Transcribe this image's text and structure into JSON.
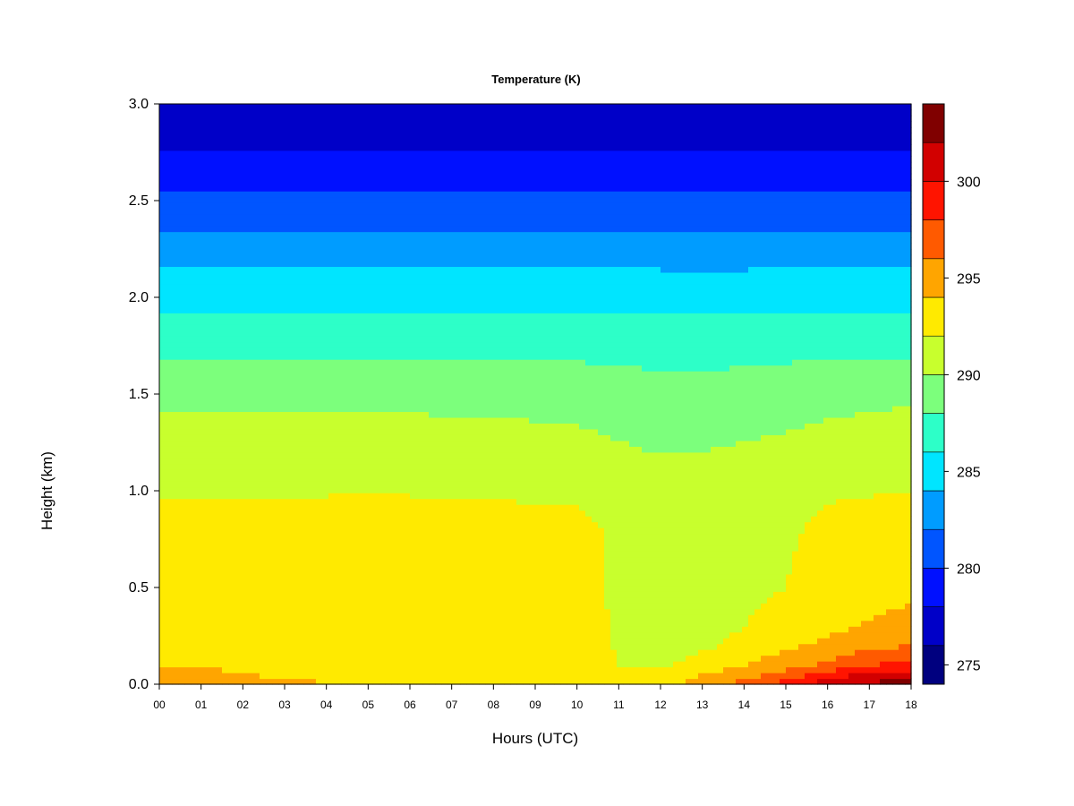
{
  "chart_data": {
    "type": "heatmap",
    "title": "Temperature (K)",
    "xlabel": "Hours (UTC)",
    "ylabel": "Height (km)",
    "x_range": [
      0,
      18
    ],
    "y_range": [
      0.0,
      3.0
    ],
    "x_ticks": [
      "00",
      "01",
      "02",
      "03",
      "04",
      "05",
      "06",
      "07",
      "08",
      "09",
      "10",
      "11",
      "12",
      "13",
      "14",
      "15",
      "16",
      "17",
      "18"
    ],
    "y_ticks": [
      "0.0",
      "0.5",
      "1.0",
      "1.5",
      "2.0",
      "2.5",
      "3.0"
    ],
    "colorbar": {
      "range": [
        274,
        304
      ],
      "step": 2,
      "tick_values": [
        275,
        280,
        285,
        290,
        295,
        300
      ],
      "tick_labels": [
        "275",
        "280",
        "285",
        "290",
        "295",
        "300"
      ],
      "levels": [
        {
          "from": 274,
          "to": 276,
          "color": "#00007F"
        },
        {
          "from": 276,
          "to": 278,
          "color": "#0000C8"
        },
        {
          "from": 278,
          "to": 280,
          "color": "#0010FF"
        },
        {
          "from": 280,
          "to": 282,
          "color": "#0055FF"
        },
        {
          "from": 282,
          "to": 284,
          "color": "#009CFF"
        },
        {
          "from": 284,
          "to": 286,
          "color": "#00E5FF"
        },
        {
          "from": 286,
          "to": 288,
          "color": "#2DFFC8"
        },
        {
          "from": 288,
          "to": 290,
          "color": "#7CFF7C"
        },
        {
          "from": 290,
          "to": 292,
          "color": "#C8FF2D"
        },
        {
          "from": 292,
          "to": 294,
          "color": "#FFEA00"
        },
        {
          "from": 294,
          "to": 296,
          "color": "#FFA500"
        },
        {
          "from": 296,
          "to": 298,
          "color": "#FF5A00"
        },
        {
          "from": 298,
          "to": 300,
          "color": "#FF1400"
        },
        {
          "from": 300,
          "to": 302,
          "color": "#D20000"
        },
        {
          "from": 302,
          "to": 304,
          "color": "#800000"
        }
      ]
    },
    "profile_heights_km": [
      0.0,
      0.05,
      0.1,
      0.2,
      0.3,
      0.5,
      0.8,
      1.0,
      1.3,
      1.5,
      1.8,
      2.0,
      2.3,
      2.5,
      2.8,
      3.0
    ],
    "profiles_hours": [
      0,
      2,
      4,
      6,
      8,
      10,
      11,
      12,
      13,
      14,
      15,
      16,
      17,
      18
    ],
    "profiles_K": [
      [
        295.0,
        294.5,
        294.0,
        293.5,
        293.2,
        293.0,
        292.6,
        291.8,
        290.5,
        289.5,
        287.0,
        285.5,
        282.5,
        280.5,
        277.5,
        276.0
      ],
      [
        294.5,
        294.0,
        293.8,
        293.4,
        293.2,
        293.0,
        292.6,
        291.8,
        290.5,
        289.5,
        287.0,
        285.5,
        282.5,
        280.5,
        277.5,
        276.0
      ],
      [
        294.0,
        293.8,
        293.5,
        293.3,
        293.2,
        293.0,
        292.7,
        291.9,
        290.5,
        289.5,
        287.0,
        285.5,
        282.5,
        280.5,
        277.5,
        276.0
      ],
      [
        293.6,
        293.5,
        293.3,
        293.2,
        293.2,
        293.0,
        292.7,
        291.9,
        290.5,
        289.5,
        287.0,
        285.5,
        282.5,
        280.5,
        277.5,
        276.0
      ],
      [
        293.5,
        293.4,
        293.3,
        293.2,
        293.2,
        293.0,
        292.7,
        291.8,
        290.4,
        289.4,
        287.0,
        285.5,
        282.5,
        280.5,
        277.5,
        276.0
      ],
      [
        293.4,
        293.3,
        293.2,
        293.2,
        293.1,
        293.0,
        292.6,
        291.6,
        290.2,
        289.3,
        287.0,
        285.5,
        282.5,
        280.5,
        277.5,
        276.0
      ],
      [
        292.4,
        292.2,
        292.0,
        291.8,
        291.6,
        291.6,
        291.6,
        291.2,
        289.8,
        289.0,
        287.0,
        285.5,
        282.5,
        280.5,
        277.5,
        276.0
      ],
      [
        293.5,
        292.4,
        291.6,
        291.0,
        290.8,
        290.8,
        291.0,
        290.8,
        289.5,
        288.8,
        286.8,
        285.4,
        282.5,
        280.5,
        277.5,
        276.0
      ],
      [
        295.0,
        294.0,
        293.0,
        291.6,
        291.0,
        290.8,
        291.0,
        290.8,
        289.6,
        288.8,
        286.8,
        285.4,
        282.5,
        280.5,
        277.5,
        276.0
      ],
      [
        297.0,
        295.0,
        294.0,
        292.8,
        292.0,
        291.3,
        291.3,
        291.1,
        289.8,
        289.0,
        286.9,
        285.4,
        282.5,
        280.5,
        277.5,
        276.0
      ],
      [
        299.0,
        297.0,
        295.0,
        293.6,
        293.0,
        292.0,
        291.7,
        291.4,
        290.0,
        289.2,
        287.0,
        285.5,
        282.5,
        280.5,
        277.5,
        276.0
      ],
      [
        301.0,
        299.0,
        296.5,
        294.5,
        293.5,
        293.0,
        292.4,
        291.8,
        290.3,
        289.4,
        287.0,
        285.5,
        282.5,
        280.5,
        277.5,
        276.0
      ],
      [
        302.5,
        300.5,
        298.0,
        295.5,
        294.2,
        293.2,
        292.6,
        291.9,
        290.5,
        289.6,
        287.0,
        285.5,
        282.5,
        280.5,
        277.5,
        276.0
      ],
      [
        303.0,
        301.0,
        298.5,
        296.0,
        294.8,
        293.4,
        292.6,
        292.0,
        290.6,
        289.7,
        287.0,
        285.5,
        282.5,
        280.5,
        277.5,
        276.0
      ]
    ]
  }
}
